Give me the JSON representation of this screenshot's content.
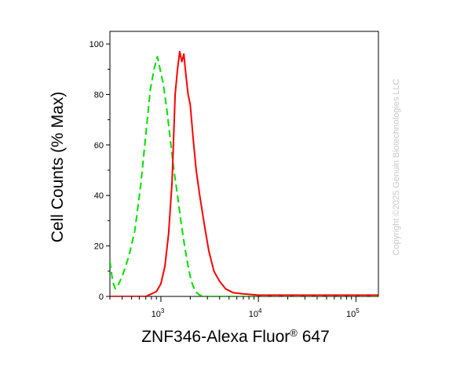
{
  "chart_data": {
    "type": "line",
    "xlabel": "ZNF346-Alexa Fluor® 647",
    "ylabel": "Cell Counts (% Max)",
    "x_scale": "log",
    "xlim": [
      300,
      170000
    ],
    "ylim": [
      0,
      105
    ],
    "y_ticks": [
      0,
      20,
      40,
      60,
      80,
      100
    ],
    "x_tick_labels": [
      {
        "value": 1000,
        "base": "10",
        "exp": "3"
      },
      {
        "value": 10000,
        "base": "10",
        "exp": "4"
      },
      {
        "value": 100000,
        "base": "10",
        "exp": "5"
      }
    ],
    "grid": false,
    "series": [
      {
        "color": "#00e000",
        "style": "dashed",
        "points": [
          [
            300,
            14
          ],
          [
            320,
            6
          ],
          [
            340,
            3
          ],
          [
            370,
            5
          ],
          [
            410,
            9
          ],
          [
            470,
            16
          ],
          [
            540,
            26
          ],
          [
            620,
            44
          ],
          [
            700,
            64
          ],
          [
            780,
            82
          ],
          [
            850,
            90
          ],
          [
            920,
            95
          ],
          [
            980,
            90
          ],
          [
            1060,
            84
          ],
          [
            1150,
            74
          ],
          [
            1250,
            62
          ],
          [
            1360,
            50
          ],
          [
            1480,
            40
          ],
          [
            1600,
            30
          ],
          [
            1750,
            20
          ],
          [
            1900,
            12
          ],
          [
            2050,
            6
          ],
          [
            2250,
            2
          ],
          [
            2500,
            0.5
          ],
          [
            3000,
            0
          ],
          [
            170000,
            0
          ]
        ]
      },
      {
        "color": "#ff0000",
        "style": "solid",
        "points": [
          [
            300,
            0
          ],
          [
            700,
            0
          ],
          [
            800,
            1
          ],
          [
            900,
            2
          ],
          [
            1000,
            5
          ],
          [
            1100,
            12
          ],
          [
            1200,
            25
          ],
          [
            1300,
            45
          ],
          [
            1400,
            80
          ],
          [
            1480,
            90
          ],
          [
            1560,
            97
          ],
          [
            1640,
            93
          ],
          [
            1720,
            96
          ],
          [
            1800,
            88
          ],
          [
            1900,
            80
          ],
          [
            2000,
            76
          ],
          [
            2150,
            62
          ],
          [
            2300,
            50
          ],
          [
            2500,
            40
          ],
          [
            2800,
            28
          ],
          [
            3100,
            18
          ],
          [
            3500,
            10
          ],
          [
            4000,
            6
          ],
          [
            4600,
            3
          ],
          [
            5500,
            1.5
          ],
          [
            7000,
            1
          ],
          [
            10000,
            0.5
          ],
          [
            20000,
            0.5
          ],
          [
            50000,
            0.5
          ],
          [
            170000,
            0.5
          ]
        ]
      }
    ]
  },
  "watermark": "Copyright ©2025 Genuin Biotechnologies LLC"
}
